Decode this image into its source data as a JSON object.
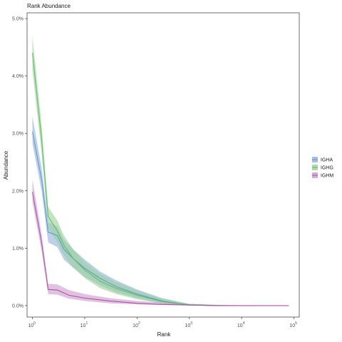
{
  "chart_data": {
    "type": "line",
    "title": "Rank Abundance",
    "xlabel": "Rank",
    "ylabel": "Abundance",
    "x_scale": "log10",
    "xlim": [
      1,
      100000
    ],
    "ylim": [
      0,
      5
    ],
    "x_ticks": [
      {
        "value": 1,
        "base": "10",
        "exp": "0"
      },
      {
        "value": 10,
        "base": "10",
        "exp": "1"
      },
      {
        "value": 100,
        "base": "10",
        "exp": "2"
      },
      {
        "value": 1000,
        "base": "10",
        "exp": "3"
      },
      {
        "value": 10000,
        "base": "10",
        "exp": "4"
      },
      {
        "value": 100000,
        "base": "10",
        "exp": "5"
      }
    ],
    "y_ticks": [
      {
        "value": 0,
        "label": "0.0%"
      },
      {
        "value": 1,
        "label": "1.0%"
      },
      {
        "value": 2,
        "label": "2.0%"
      },
      {
        "value": 3,
        "label": "3.0%"
      },
      {
        "value": 4,
        "label": "4.0%"
      },
      {
        "value": 5,
        "label": "5.0%"
      }
    ],
    "grid": false,
    "legend_position": "right",
    "series": [
      {
        "name": "IGHA",
        "color": "#6699cc",
        "fill": "#8db3db",
        "points": [
          {
            "x": 1,
            "y": 3.03,
            "lo": 2.82,
            "hi": 3.3
          },
          {
            "x": 1.5,
            "y": 2.2,
            "lo": 2.0,
            "hi": 2.4
          },
          {
            "x": 2,
            "y": 1.28,
            "lo": 1.1,
            "hi": 1.45
          },
          {
            "x": 3,
            "y": 1.22,
            "lo": 1.02,
            "hi": 1.38
          },
          {
            "x": 4,
            "y": 0.98,
            "lo": 0.8,
            "hi": 1.15
          },
          {
            "x": 6,
            "y": 0.82,
            "lo": 0.66,
            "hi": 0.98
          },
          {
            "x": 10,
            "y": 0.65,
            "lo": 0.5,
            "hi": 0.8
          },
          {
            "x": 20,
            "y": 0.47,
            "lo": 0.35,
            "hi": 0.59
          },
          {
            "x": 40,
            "y": 0.33,
            "lo": 0.23,
            "hi": 0.44
          },
          {
            "x": 100,
            "y": 0.2,
            "lo": 0.13,
            "hi": 0.28
          },
          {
            "x": 300,
            "y": 0.08,
            "lo": 0.04,
            "hi": 0.13
          },
          {
            "x": 1000,
            "y": 0.01,
            "lo": 0.0,
            "hi": 0.03
          },
          {
            "x": 3000,
            "y": 0.0,
            "lo": 0.0,
            "hi": 0.01
          },
          {
            "x": 5000,
            "y": 0.0,
            "lo": 0.0,
            "hi": 0.005
          }
        ]
      },
      {
        "name": "IGHG",
        "color": "#66bb66",
        "fill": "#99d199",
        "points": [
          {
            "x": 1,
            "y": 4.4,
            "lo": 4.1,
            "hi": 4.7
          },
          {
            "x": 1.5,
            "y": 2.9,
            "lo": 2.65,
            "hi": 3.15
          },
          {
            "x": 2,
            "y": 1.55,
            "lo": 1.35,
            "hi": 1.72
          },
          {
            "x": 3,
            "y": 1.3,
            "lo": 1.1,
            "hi": 1.48
          },
          {
            "x": 4,
            "y": 1.05,
            "lo": 0.88,
            "hi": 1.22
          },
          {
            "x": 6,
            "y": 0.82,
            "lo": 0.66,
            "hi": 0.98
          },
          {
            "x": 10,
            "y": 0.62,
            "lo": 0.48,
            "hi": 0.76
          },
          {
            "x": 20,
            "y": 0.42,
            "lo": 0.3,
            "hi": 0.55
          },
          {
            "x": 40,
            "y": 0.3,
            "lo": 0.2,
            "hi": 0.41
          },
          {
            "x": 100,
            "y": 0.18,
            "lo": 0.11,
            "hi": 0.26
          },
          {
            "x": 300,
            "y": 0.07,
            "lo": 0.03,
            "hi": 0.12
          },
          {
            "x": 1000,
            "y": 0.01,
            "lo": 0.0,
            "hi": 0.03
          },
          {
            "x": 3000,
            "y": 0.0,
            "lo": 0.0,
            "hi": 0.01
          },
          {
            "x": 8000,
            "y": 0.0,
            "lo": 0.0,
            "hi": 0.005
          }
        ]
      },
      {
        "name": "IGHM",
        "color": "#aa55aa",
        "fill": "#cc99cc",
        "points": [
          {
            "x": 1,
            "y": 1.98,
            "lo": 1.8,
            "hi": 2.2
          },
          {
            "x": 1.5,
            "y": 1.1,
            "lo": 0.95,
            "hi": 1.25
          },
          {
            "x": 2,
            "y": 0.28,
            "lo": 0.2,
            "hi": 0.38
          },
          {
            "x": 3,
            "y": 0.27,
            "lo": 0.19,
            "hi": 0.37
          },
          {
            "x": 5,
            "y": 0.18,
            "lo": 0.12,
            "hi": 0.27
          },
          {
            "x": 10,
            "y": 0.13,
            "lo": 0.08,
            "hi": 0.2
          },
          {
            "x": 30,
            "y": 0.08,
            "lo": 0.04,
            "hi": 0.13
          },
          {
            "x": 100,
            "y": 0.04,
            "lo": 0.02,
            "hi": 0.08
          },
          {
            "x": 300,
            "y": 0.02,
            "lo": 0.01,
            "hi": 0.05
          },
          {
            "x": 1000,
            "y": 0.01,
            "lo": 0.0,
            "hi": 0.03
          },
          {
            "x": 5000,
            "y": 0.0,
            "lo": 0.0,
            "hi": 0.01
          },
          {
            "x": 30000,
            "y": 0.0,
            "lo": 0.0,
            "hi": 0.005
          },
          {
            "x": 80000,
            "y": 0.0,
            "lo": 0.0,
            "hi": 0.003
          }
        ]
      }
    ]
  }
}
